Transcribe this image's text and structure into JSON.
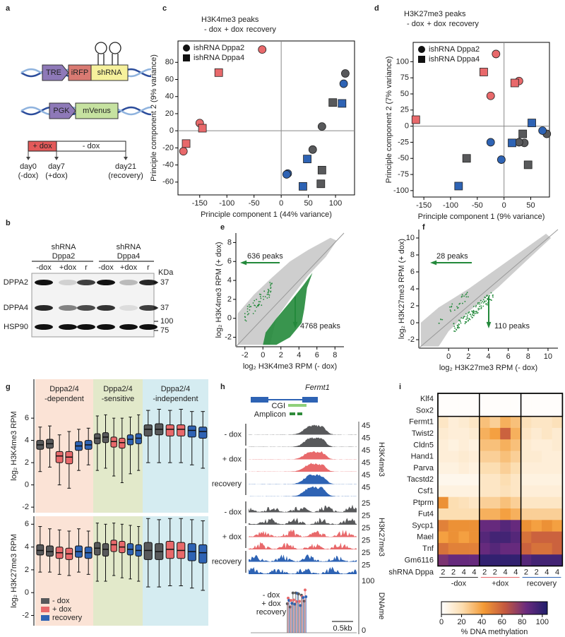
{
  "panel_labels": [
    "a",
    "b",
    "c",
    "d",
    "e",
    "f",
    "g",
    "h",
    "i"
  ],
  "a": {
    "construct1": [
      "TRE",
      "iRFP",
      "shRNA"
    ],
    "construct2": [
      "PGK",
      "mVenus"
    ],
    "phases": [
      "+ dox",
      "- dox"
    ],
    "timepoints": [
      [
        "day0",
        "(-dox)"
      ],
      [
        "day7",
        "(+dox)"
      ],
      [
        "day21",
        "(recovery)"
      ]
    ],
    "timepoint_colors": [
      "#58595b",
      "#e8696b",
      "#2e63b4"
    ]
  },
  "b": {
    "groups": [
      [
        "shRNA",
        "Dppa2"
      ],
      [
        "shRNA",
        "Dppa4"
      ]
    ],
    "lanes": [
      "-dox",
      "+dox",
      "r",
      "-dox",
      "+dox",
      "r"
    ],
    "lane_colors": [
      "#333333",
      "#e8696b",
      "#2e63b4",
      "#333333",
      "#e8696b",
      "#2e63b4"
    ],
    "unit": "KDa",
    "rows": [
      {
        "name": "DPPA2",
        "markers": [
          37
        ]
      },
      {
        "name": "DPPA4",
        "markers": [
          37
        ]
      },
      {
        "name": "HSP90",
        "markers": [
          100,
          75
        ]
      }
    ]
  },
  "h": {
    "gene": "Fermt1",
    "features": [
      "CGI",
      "Amplicon"
    ],
    "track_groups": [
      {
        "mark": "H3K4me3",
        "conditions": [
          "- dox",
          "+ dox",
          "recovery"
        ],
        "scales": [
          45,
          45,
          45,
          45,
          45,
          45
        ]
      },
      {
        "mark": "H3K27me3",
        "conditions": [
          "- dox",
          "+ dox",
          "recovery"
        ],
        "scales": [
          25,
          25,
          25,
          25,
          25,
          25
        ]
      }
    ],
    "dname": {
      "mark": "DNAme",
      "scale": [
        100,
        0
      ]
    },
    "legend": [
      "- dox",
      "+ dox",
      "recovery"
    ],
    "colors": [
      "#58595b",
      "#e8696b",
      "#2e63b4"
    ],
    "scalebar": "0.5kb"
  },
  "chart_data": [
    {
      "type": "scatter",
      "title": "H3K4me3 peaks",
      "subtitle": [
        "- dox",
        "+ dox",
        "recovery"
      ],
      "subtitle_colors": [
        "#333333",
        "#e8696b",
        "#2e63b4"
      ],
      "shape_legend": [
        {
          "label": "ishRNA Dppa2",
          "shape": "circle"
        },
        {
          "label": "ishRNA Dppa4",
          "shape": "square"
        }
      ],
      "xlabel": "Principle component 1 (44% variance)",
      "ylabel": "Principle component 2 (9% variance)",
      "xlim": [
        -190,
        135
      ],
      "ylim": [
        -75,
        105
      ],
      "xticks": [
        -150,
        -100,
        -50,
        0,
        50,
        100
      ],
      "yticks": [
        -60,
        -40,
        -20,
        0,
        20,
        40,
        60,
        80
      ],
      "series": [
        {
          "shape": "circle",
          "color": "#58595b",
          "x": [
            118,
            75,
            58
          ],
          "y": [
            67,
            5,
            -22
          ]
        },
        {
          "shape": "circle",
          "color": "#e8696b",
          "x": [
            -35,
            -150,
            -180
          ],
          "y": [
            95,
            9,
            -24
          ]
        },
        {
          "shape": "circle",
          "color": "#2e63b4",
          "x": [
            115,
            12,
            10
          ],
          "y": [
            55,
            -50,
            -51
          ]
        },
        {
          "shape": "square",
          "color": "#58595b",
          "x": [
            95,
            75,
            73
          ],
          "y": [
            33,
            -46,
            -62
          ]
        },
        {
          "shape": "square",
          "color": "#e8696b",
          "x": [
            -115,
            -145,
            -175
          ],
          "y": [
            68,
            3,
            -15
          ]
        },
        {
          "shape": "square",
          "color": "#2e63b4",
          "x": [
            112,
            48,
            40
          ],
          "y": [
            32,
            -33,
            -65
          ]
        }
      ]
    },
    {
      "type": "scatter",
      "title": "H3K27me3 peaks",
      "subtitle": [
        "- dox",
        "+ dox",
        "recovery"
      ],
      "subtitle_colors": [
        "#333333",
        "#e8696b",
        "#2e63b4"
      ],
      "shape_legend": [
        {
          "label": "ishRNA Dppa2",
          "shape": "circle"
        },
        {
          "label": "ishRNA Dppa4",
          "shape": "square"
        }
      ],
      "xlabel": "Principle component 1 (9% variance)",
      "ylabel": "Principle component 2 (7% variance)",
      "xlim": [
        -170,
        85
      ],
      "ylim": [
        -110,
        130
      ],
      "xticks": [
        -150,
        -100,
        -50,
        0,
        50
      ],
      "yticks": [
        -100,
        -75,
        -50,
        -25,
        0,
        25,
        50,
        75,
        100
      ],
      "series": [
        {
          "shape": "circle",
          "color": "#58595b",
          "x": [
            38,
            80,
            28
          ],
          "y": [
            -26,
            -12,
            -25
          ]
        },
        {
          "shape": "circle",
          "color": "#e8696b",
          "x": [
            -15,
            -25,
            28
          ],
          "y": [
            112,
            47,
            70
          ]
        },
        {
          "shape": "circle",
          "color": "#2e63b4",
          "x": [
            -25,
            -5,
            72
          ],
          "y": [
            -25,
            -52,
            -7
          ]
        },
        {
          "shape": "square",
          "color": "#58595b",
          "x": [
            -70,
            35,
            45
          ],
          "y": [
            -50,
            -12,
            -60
          ]
        },
        {
          "shape": "square",
          "color": "#e8696b",
          "x": [
            -165,
            -38,
            20
          ],
          "y": [
            10,
            84,
            67
          ]
        },
        {
          "shape": "square",
          "color": "#2e63b4",
          "x": [
            -85,
            15,
            52
          ],
          "y": [
            -93,
            -26,
            5
          ]
        }
      ]
    },
    {
      "type": "density",
      "xlabel": "log₂ H3K4me3 RPM (- dox)",
      "ylabel": "log₂ H3K4me3 RPM (+ dox)",
      "ylabel_color": "#e8696b",
      "xlim": [
        -3,
        9
      ],
      "ylim": [
        -3,
        9
      ],
      "xticks": [
        -2,
        0,
        2,
        4,
        6,
        8
      ],
      "yticks": [
        -2,
        0,
        2,
        4,
        6,
        8
      ],
      "annotations": [
        "636 peaks",
        "4768 peaks"
      ],
      "color": "#c9c9c9",
      "highlight_color": "#23893b"
    },
    {
      "type": "density",
      "xlabel": "log₂ H3K27me3 RPM (- dox)",
      "ylabel": "log₂ H3K27me3 RPM (+ dox)",
      "ylabel_color": "#e8696b",
      "xlim": [
        -3,
        11
      ],
      "ylim": [
        -3,
        11
      ],
      "xticks": [
        0,
        2,
        4,
        6,
        8,
        10
      ],
      "yticks": [
        -2,
        0,
        2,
        4,
        6,
        8,
        10
      ],
      "annotations": [
        "28 peaks",
        "110 peaks"
      ],
      "color": "#c9c9c9",
      "highlight_color": "#23893b"
    },
    {
      "type": "box",
      "groups": [
        {
          "label": [
            "Dppa2/4",
            "-dependent"
          ],
          "color": "#b7693f",
          "background": "#fbe3d6"
        },
        {
          "label": [
            "Dppa2/4",
            "-sensitive"
          ],
          "color": "#5d6e1f",
          "background": "#e2e9ca"
        },
        {
          "label": [
            "Dppa2/4",
            "-independent"
          ],
          "color": "#287f93",
          "background": "#d5ecf1"
        }
      ],
      "box_colors": [
        "#58595b",
        "#58595b",
        "#e8696b",
        "#e8696b",
        "#2e63b4",
        "#2e63b4"
      ],
      "legend": [
        "- dox",
        "+ dox",
        "recovery"
      ],
      "legend_colors": [
        "#58595b",
        "#e8696b",
        "#2e63b4"
      ],
      "plots": [
        {
          "ylabel": "log₂ H3K4me3 RPM",
          "ylim": [
            -2.5,
            9.5
          ],
          "yticks": [
            -2,
            0,
            2,
            4,
            6
          ],
          "boxes": [
            [
              [
                1.2,
                3.2,
                3.6,
                4.0,
                5.2
              ],
              [
                1.6,
                3.3,
                3.7,
                4.1,
                5.3
              ],
              [
                0.0,
                2.0,
                2.6,
                3.0,
                4.5
              ],
              [
                -0.3,
                1.9,
                2.5,
                3.0,
                4.8
              ],
              [
                1.3,
                3.1,
                3.5,
                3.9,
                5.0
              ],
              [
                1.8,
                3.2,
                3.6,
                4.0,
                5.1
              ]
            ],
            [
              [
                1.3,
                3.7,
                4.2,
                4.6,
                6.2
              ],
              [
                1.5,
                3.8,
                4.3,
                4.7,
                6.3
              ],
              [
                0.8,
                3.4,
                3.9,
                4.3,
                6.0
              ],
              [
                0.2,
                3.3,
                3.8,
                4.2,
                6.0
              ],
              [
                1.0,
                3.6,
                4.1,
                4.5,
                6.1
              ],
              [
                1.3,
                3.7,
                4.2,
                4.6,
                6.3
              ]
            ],
            [
              [
                2.0,
                4.4,
                5.0,
                5.4,
                6.7
              ],
              [
                2.0,
                4.5,
                5.0,
                5.5,
                6.8
              ],
              [
                2.0,
                4.4,
                5.0,
                5.4,
                6.7
              ],
              [
                2.0,
                4.4,
                5.0,
                5.4,
                6.8
              ],
              [
                1.8,
                4.3,
                4.9,
                5.3,
                6.6
              ],
              [
                1.5,
                4.2,
                4.8,
                5.2,
                6.6
              ]
            ]
          ]
        },
        {
          "ylabel": "log₂ H3K27me3 RPM",
          "ylim": [
            -2.9,
            6.7
          ],
          "yticks": [
            -2,
            0,
            2,
            4,
            6
          ],
          "boxes": [
            [
              [
                1.8,
                3.3,
                3.7,
                4.2,
                5.8
              ],
              [
                1.8,
                3.2,
                3.6,
                4.1,
                5.6
              ],
              [
                1.6,
                3.0,
                3.5,
                4.0,
                5.5
              ],
              [
                1.5,
                2.9,
                3.4,
                3.9,
                5.4
              ],
              [
                1.8,
                3.1,
                3.6,
                4.1,
                5.6
              ],
              [
                1.6,
                3.0,
                3.5,
                4.0,
                5.4
              ]
            ],
            [
              [
                1.0,
                3.3,
                3.9,
                4.4,
                6.1
              ],
              [
                1.0,
                3.2,
                3.8,
                4.3,
                6.0
              ],
              [
                1.5,
                3.6,
                4.2,
                4.6,
                6.1
              ],
              [
                1.3,
                3.5,
                4.0,
                4.5,
                6.0
              ],
              [
                1.2,
                3.3,
                3.8,
                4.3,
                5.9
              ],
              [
                1.0,
                3.2,
                3.7,
                4.2,
                5.8
              ]
            ],
            [
              [
                0.5,
                2.9,
                3.7,
                4.4,
                6.5
              ],
              [
                0.5,
                2.9,
                3.6,
                4.3,
                6.4
              ],
              [
                0.6,
                3.0,
                3.8,
                4.5,
                6.5
              ],
              [
                0.6,
                3.0,
                3.7,
                4.4,
                6.5
              ],
              [
                0.4,
                2.8,
                3.6,
                4.3,
                6.4
              ],
              [
                0.2,
                2.6,
                3.5,
                4.2,
                6.3
              ]
            ]
          ]
        }
      ]
    },
    {
      "type": "heatmap",
      "rows": [
        "Klf4",
        "Sox2",
        "Fermt1",
        "Twist2",
        "Cldn5",
        "Hand1",
        "Parva",
        "Tacstd2",
        "Csf1",
        "Ptprm",
        "Fut4",
        "Sycp1",
        "Mael",
        "Tnf",
        "Gm6116"
      ],
      "column_title": "shRNA Dppa",
      "columns": [
        2,
        2,
        4,
        4,
        2,
        2,
        4,
        4,
        2,
        2,
        4,
        4
      ],
      "groups": [
        "-dox",
        "+dox",
        "recovery"
      ],
      "group_colors": [
        "#333333",
        "#e8696b",
        "#2e63b4"
      ],
      "values": [
        [
          1,
          1,
          1,
          1,
          1,
          1,
          1,
          1,
          1,
          1,
          1,
          1
        ],
        [
          1,
          1,
          1,
          1,
          1,
          1,
          1,
          1,
          1,
          1,
          1,
          1
        ],
        [
          15,
          10,
          12,
          15,
          30,
          25,
          35,
          30,
          18,
          15,
          15,
          18
        ],
        [
          12,
          10,
          10,
          12,
          35,
          40,
          60,
          35,
          15,
          12,
          15,
          12
        ],
        [
          10,
          8,
          10,
          8,
          30,
          30,
          35,
          30,
          12,
          10,
          10,
          12
        ],
        [
          10,
          10,
          12,
          10,
          25,
          25,
          30,
          25,
          12,
          12,
          10,
          10
        ],
        [
          8,
          8,
          10,
          8,
          20,
          20,
          25,
          20,
          10,
          10,
          10,
          10
        ],
        [
          5,
          5,
          5,
          5,
          15,
          15,
          20,
          15,
          8,
          8,
          8,
          8
        ],
        [
          8,
          8,
          8,
          8,
          15,
          15,
          18,
          15,
          10,
          10,
          10,
          10
        ],
        [
          45,
          20,
          18,
          15,
          25,
          25,
          30,
          25,
          15,
          15,
          15,
          15
        ],
        [
          20,
          20,
          20,
          20,
          35,
          35,
          40,
          35,
          25,
          25,
          25,
          25
        ],
        [
          50,
          45,
          45,
          45,
          85,
          85,
          90,
          85,
          45,
          40,
          45,
          40
        ],
        [
          40,
          45,
          40,
          45,
          90,
          95,
          95,
          90,
          55,
          60,
          60,
          60
        ],
        [
          55,
          50,
          50,
          50,
          85,
          90,
          85,
          85,
          60,
          55,
          55,
          60
        ],
        [
          80,
          85,
          85,
          85,
          100,
          100,
          100,
          100,
          90,
          95,
          95,
          95
        ]
      ],
      "colormap": [
        "#ffffff",
        "#fcdcae",
        "#f39a35",
        "#c4593f",
        "#6a2b7e",
        "#201e6b"
      ],
      "clim": [
        0,
        105
      ],
      "colorbar_ticks": [
        0,
        20,
        40,
        60,
        80,
        100
      ],
      "colorbar_label": "% DNA methylation"
    }
  ]
}
